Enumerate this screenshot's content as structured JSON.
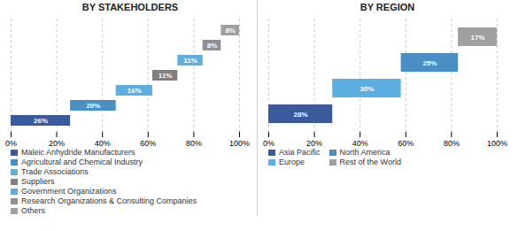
{
  "chart_data": [
    {
      "type": "waterfall",
      "orientation": "horizontal",
      "title": "BY STAKEHOLDERS",
      "categories": [
        "Maleic Anhydride Manufacturers",
        "Agricultural and Chemical Industry",
        "Trade Associations",
        "Suppliers",
        "Government Organizations",
        "Research Organizations & Consulting Companies",
        "Others"
      ],
      "values": [
        26,
        20,
        16,
        11,
        11,
        8,
        8
      ],
      "value_labels": [
        "26%",
        "20%",
        "16%",
        "11%",
        "11%",
        "8%",
        "8%"
      ],
      "colors": [
        "#3a5a9c",
        "#4a8ec4",
        "#5aaee0",
        "#808080",
        "#5aaee0",
        "#909090",
        "#a0a0a0"
      ],
      "xlim": [
        0,
        100
      ],
      "xticks": [
        {
          "value": 0,
          "label": "0%"
        },
        {
          "value": 20,
          "label": "20%"
        },
        {
          "value": 40,
          "label": "40%"
        },
        {
          "value": 60,
          "label": "60%"
        },
        {
          "value": 80,
          "label": "80%"
        },
        {
          "value": 100,
          "label": "100%"
        }
      ],
      "grid": true,
      "data_labels": true,
      "tick_labels": "x",
      "legend": "bottom"
    },
    {
      "type": "waterfall",
      "orientation": "horizontal",
      "title": "BY REGION",
      "categories": [
        "Asia Pacific",
        "Europe",
        "North America",
        "Rest of the World"
      ],
      "values": [
        28,
        30,
        25,
        17
      ],
      "value_labels": [
        "28%",
        "30%",
        "25%",
        "17%"
      ],
      "colors": [
        "#3a5a9c",
        "#5aaee0",
        "#4a8ec4",
        "#a0a0a0"
      ],
      "xlim": [
        0,
        100
      ],
      "xticks": [
        {
          "value": 0,
          "label": "0%"
        },
        {
          "value": 20,
          "label": "20%"
        },
        {
          "value": 40,
          "label": "40%"
        },
        {
          "value": 60,
          "label": "60%"
        },
        {
          "value": 80,
          "label": "80%"
        },
        {
          "value": 100,
          "label": "100%"
        }
      ],
      "grid": true,
      "data_labels": true,
      "tick_labels": "x",
      "legend": "bottom"
    }
  ]
}
